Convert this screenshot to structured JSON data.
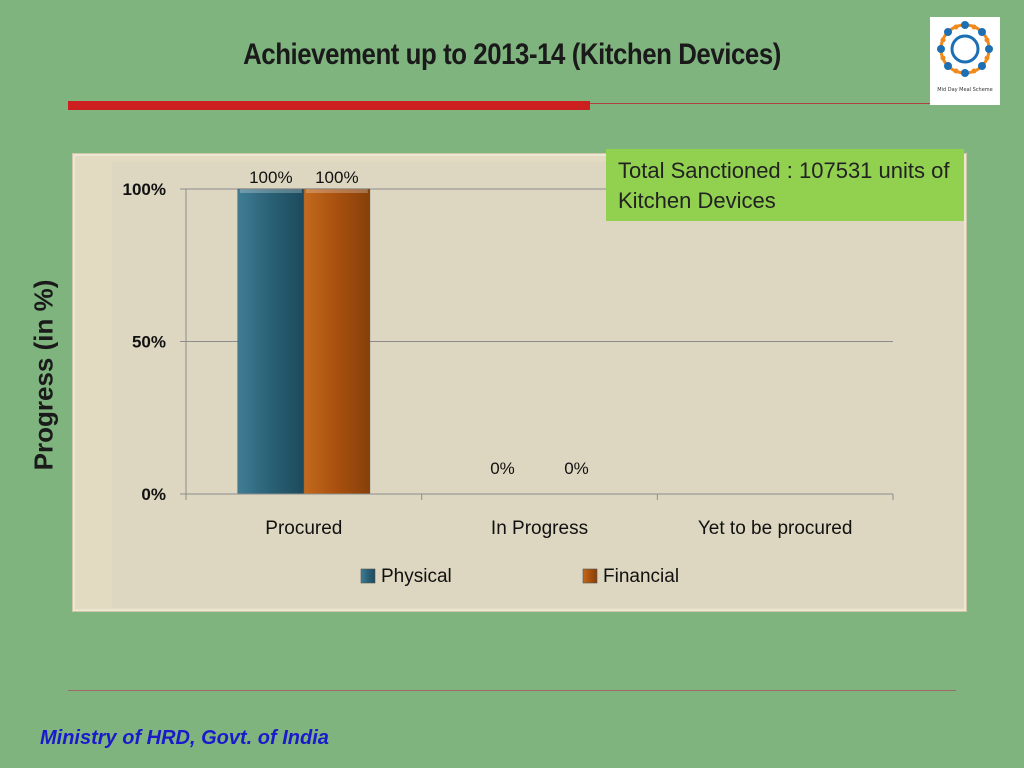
{
  "slide": {
    "title": "Achievement up to 2013-14 (Kitchen Devices)",
    "footer": "Ministry of HRD, Govt. of India",
    "logo_caption": "Mid Day Meal Scheme",
    "note": "Total Sanctioned : 107531 units of Kitchen Devices"
  },
  "colors": {
    "background": "#7fb47f",
    "accent_rule": "#cc1f1f",
    "note_box": "#92d050",
    "footer_text": "#1a1acc"
  },
  "chart_data": {
    "type": "bar",
    "title": "",
    "xlabel": "",
    "ylabel": "Progress (in %)",
    "categories": [
      "Procured",
      "In Progress",
      "Yet to be procured"
    ],
    "series": [
      {
        "name": "Physical",
        "color": "#2a6075",
        "values": [
          100,
          0,
          null
        ],
        "labels": [
          "100%",
          "0%",
          ""
        ]
      },
      {
        "name": "Financial",
        "color": "#a8500e",
        "values": [
          100,
          0,
          null
        ],
        "labels": [
          "100%",
          "0%",
          ""
        ]
      }
    ],
    "yticks": [
      0,
      50,
      100
    ],
    "ytick_labels": [
      "0%",
      "50%",
      "100%"
    ],
    "ylim": [
      0,
      100
    ],
    "grid": true,
    "legend": "bottom"
  }
}
